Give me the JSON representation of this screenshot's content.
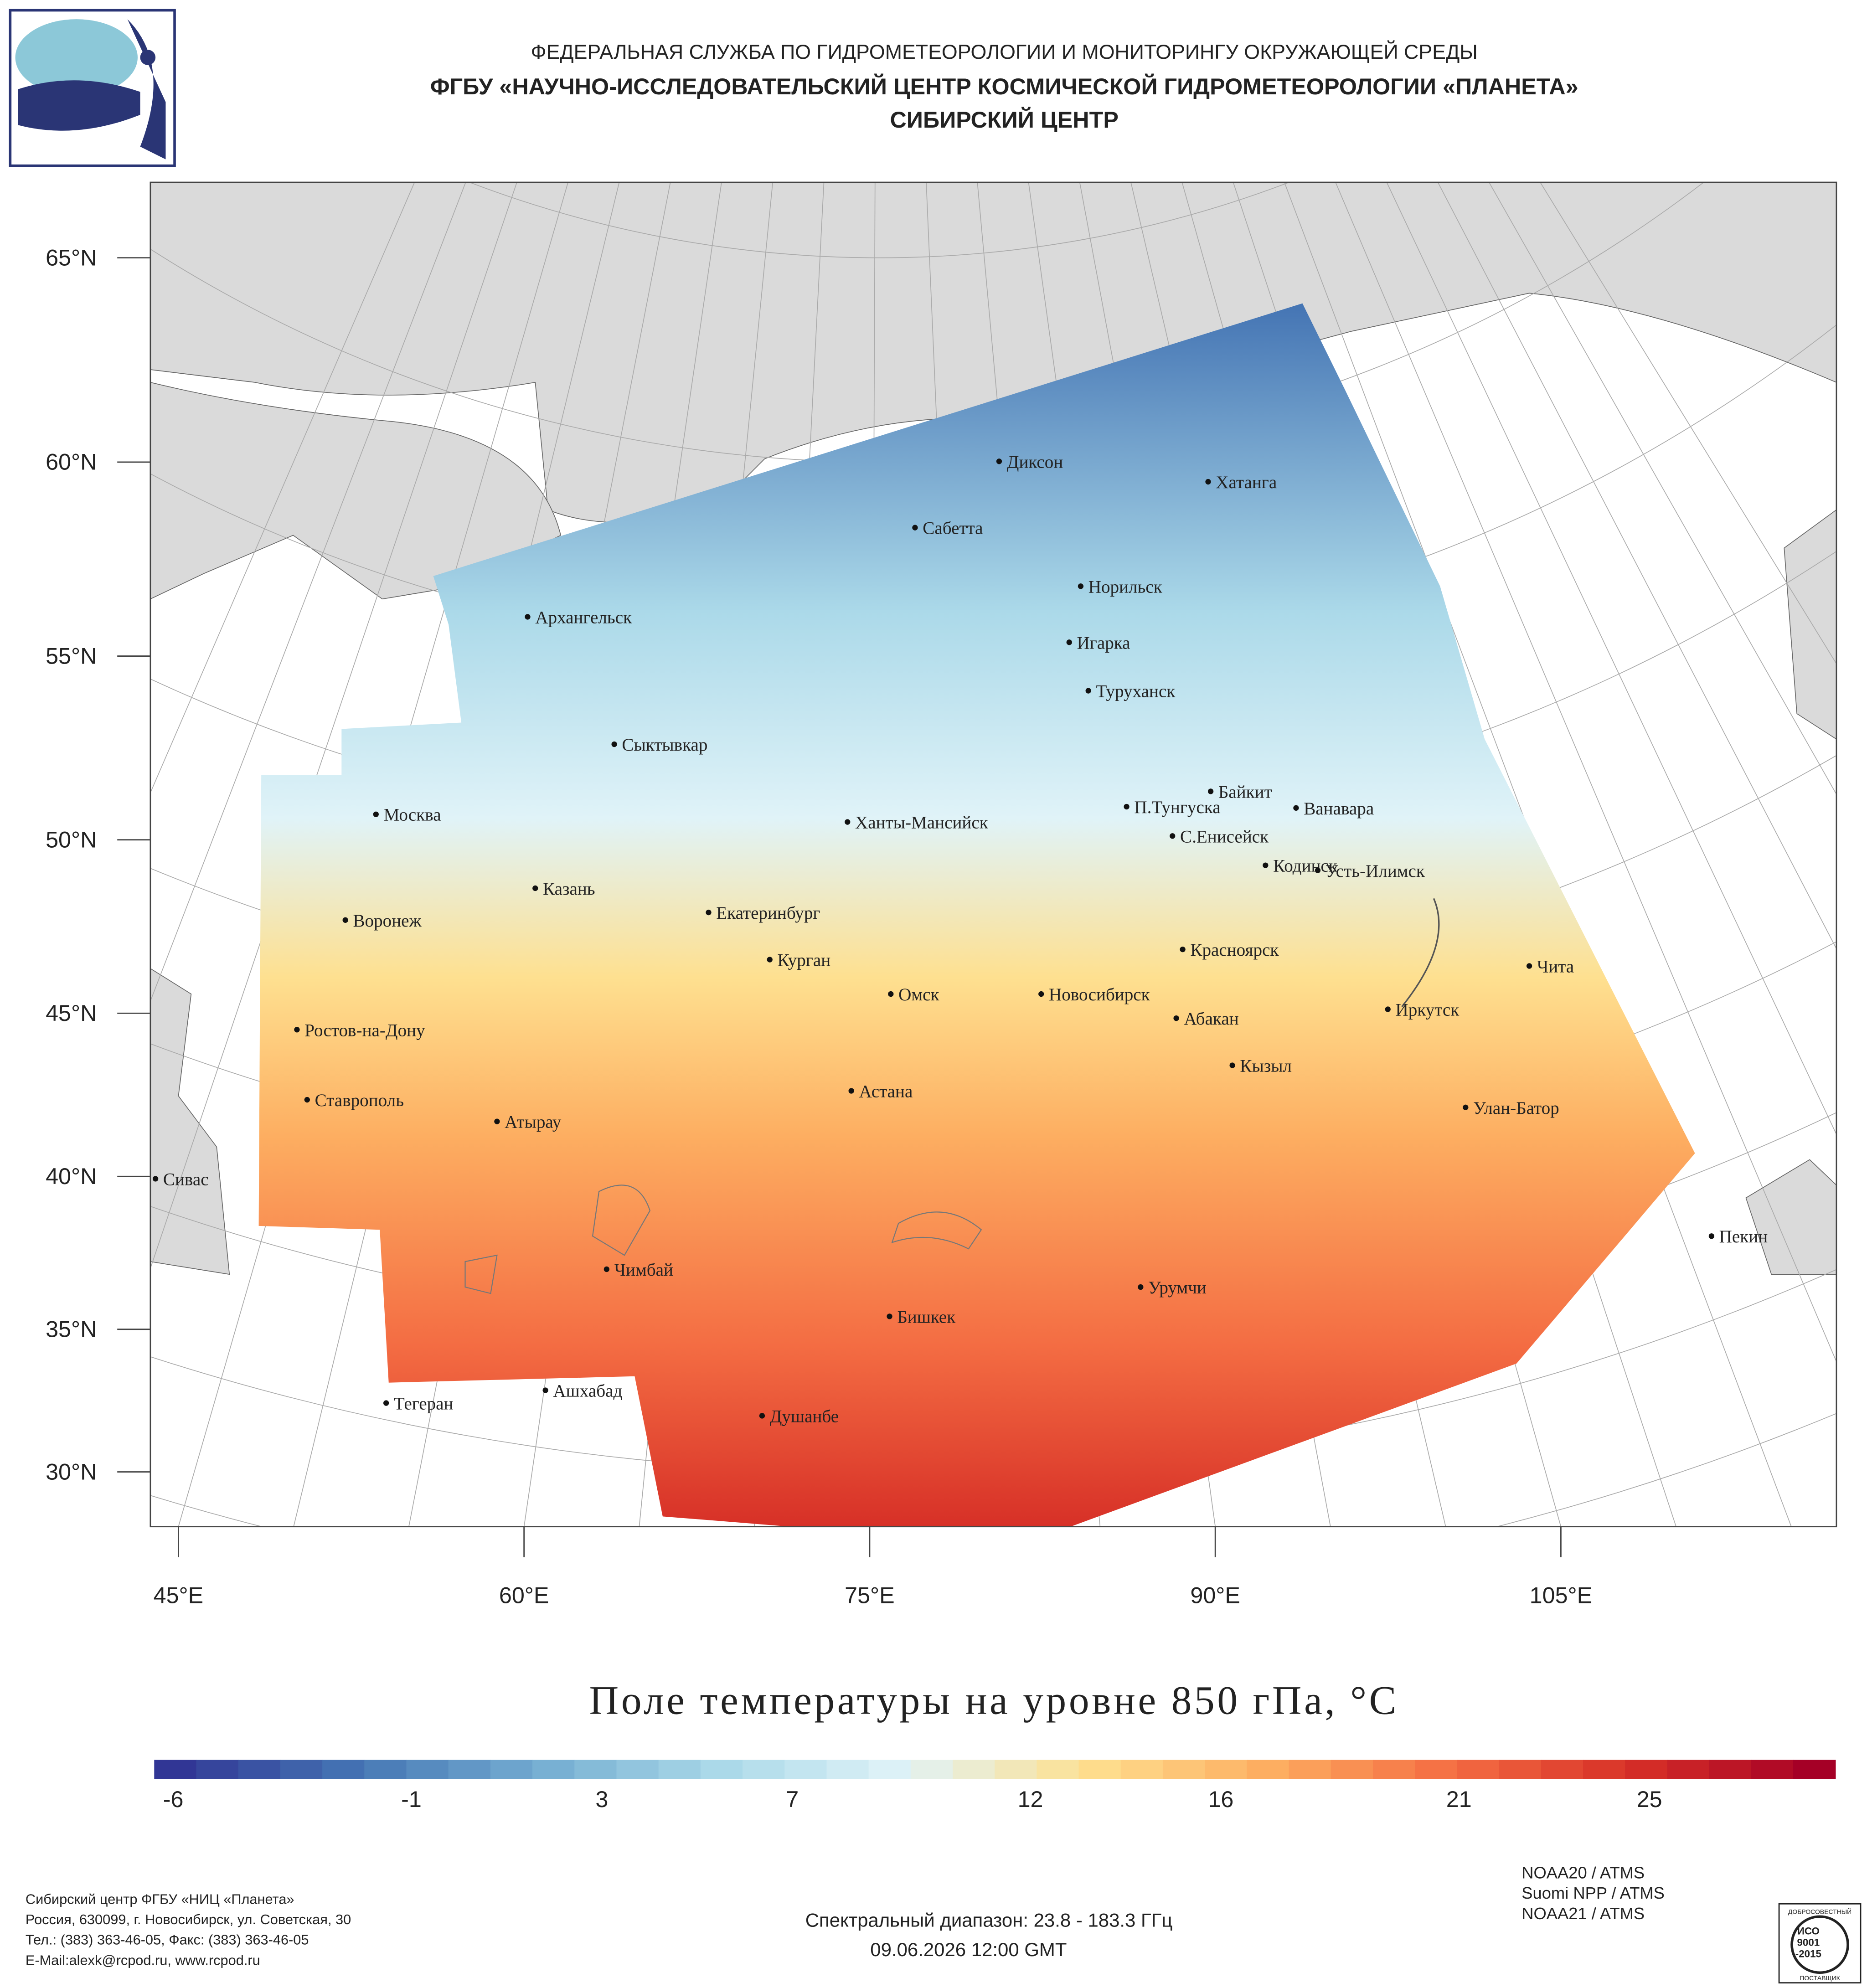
{
  "header": {
    "lines": [
      "ФЕДЕРАЛЬНАЯ СЛУЖБА ПО ГИДРОМЕТЕОРОЛОГИИ И МОНИТОРИНГУ ОКРУЖАЮЩЕЙ СРЕДЫ",
      "ФГБУ «НАУЧНО-ИССЛЕДОВАТЕЛЬСКИЙ ЦЕНТР КОСМИЧЕСКОЙ ГИДРОМЕТЕОРОЛОГИИ «ПЛАНЕТА»",
      "СИБИРСКИЙ ЦЕНТР"
    ]
  },
  "map": {
    "lat_ticks": [
      {
        "value": 65,
        "label": "65°N"
      },
      {
        "value": 60,
        "label": "60°N"
      },
      {
        "value": 55,
        "label": "55°N"
      },
      {
        "value": 50,
        "label": "50°N"
      },
      {
        "value": 45,
        "label": "45°N"
      },
      {
        "value": 40,
        "label": "40°N"
      },
      {
        "value": 35,
        "label": "35°N"
      },
      {
        "value": 30,
        "label": "30°N"
      }
    ],
    "lon_ticks": [
      {
        "value": 45,
        "label": "45°E"
      },
      {
        "value": 60,
        "label": "60°E"
      },
      {
        "value": 75,
        "label": "75°E"
      },
      {
        "value": 90,
        "label": "90°E"
      },
      {
        "value": 105,
        "label": "105°E"
      }
    ],
    "cities": [
      "Диксон",
      "Хатанга",
      "Сабетта",
      "Норильск",
      "Архангельск",
      "Игарка",
      "Туруханск",
      "Сыктывкар",
      "Байкит",
      "Москва",
      "П.Тунгуска",
      "Ванавара",
      "Ханты-Мансийск",
      "С.Енисейск",
      "Кодинск",
      "Усть-Илимск",
      "Казань",
      "Екатеринбург",
      "Воронеж",
      "Красноярск",
      "Курган",
      "Чита",
      "Омск",
      "Новосибирск",
      "Иркутск",
      "Абакан",
      "Ростов-на-Дону",
      "Кызыл",
      "Астана",
      "Ставрополь",
      "Улан-Батор",
      "Атырау",
      "Сивас",
      "Пекин",
      "Чимбай",
      "Урумчи",
      "Бишкек",
      "Ашхабад",
      "Тегеран",
      "Душанбе"
    ]
  },
  "colorbar": {
    "title": "Поле температуры на уровне 850 гПа, °C",
    "lim": [
      -6.4,
      28.9
    ],
    "ticks": [
      -6,
      -1,
      3,
      7,
      12,
      16,
      21,
      25
    ],
    "colors": [
      "#313695",
      "#4575b4",
      "#74add1",
      "#abd9e9",
      "#e0f3f8",
      "#fee090",
      "#fdae61",
      "#f46d43",
      "#d73027",
      "#a50026"
    ]
  },
  "footer": {
    "address": [
      "Сибирский центр ФГБУ «НИЦ «Планета»",
      "Россия, 630099, г. Новосибирск, ул. Советская, 30",
      "Тел.: (383) 363-46-05, Факс: (383) 363-46-05",
      "E-Mail:alexk@rcpod.ru, www.rcpod.ru"
    ],
    "spectral": "Спектральный диапазон: 23.8 - 183.3 ГГц",
    "datetime": "09.06.2026 12:00 GMT",
    "instruments": [
      "NOAA20 / ATMS",
      "Suomi NPP / ATMS",
      "NOAA21 / ATMS"
    ],
    "badge": [
      "ДОБРОСОВЕСТНЫЙ",
      "ИСО",
      "9001",
      "-2015",
      "ПОСТАВЩИК"
    ]
  }
}
